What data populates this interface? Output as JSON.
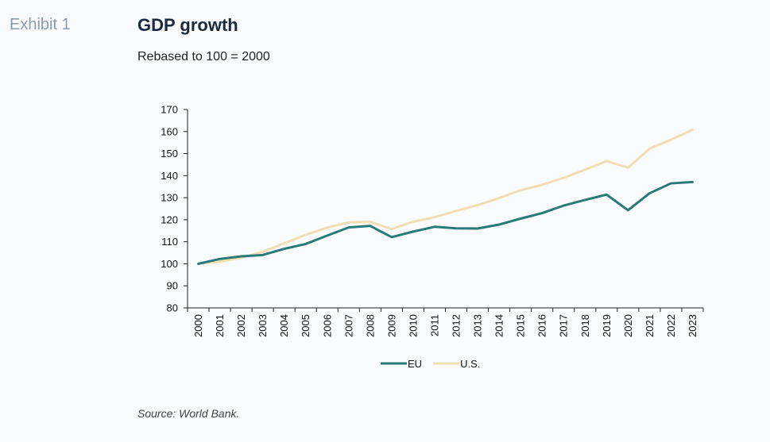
{
  "header": {
    "exhibit": "Exhibit 1",
    "title": "GDP growth",
    "subtitle": "Rebased to 100 = 2000"
  },
  "footer": {
    "source": "Source: World Bank."
  },
  "chart_data": {
    "type": "line",
    "title": "GDP growth",
    "subtitle": "Rebased to 100 = 2000",
    "xlabel": "",
    "ylabel": "",
    "x": [
      "2000",
      "2001",
      "2002",
      "2003",
      "2004",
      "2005",
      "2006",
      "2007",
      "2008",
      "2009",
      "2010",
      "2011",
      "2012",
      "2013",
      "2014",
      "2015",
      "2016",
      "2017",
      "2018",
      "2019",
      "2020",
      "2021",
      "2022",
      "2023"
    ],
    "ylim": [
      80,
      170
    ],
    "yticks": [
      80,
      90,
      100,
      110,
      120,
      130,
      140,
      150,
      160,
      170
    ],
    "grid": false,
    "legend_position": "bottom",
    "series": [
      {
        "name": "EU",
        "color": "#2a7a7a",
        "values": [
          100,
          102.2,
          103.4,
          104.0,
          106.8,
          109.0,
          112.8,
          116.5,
          117.2,
          112.1,
          114.6,
          116.8,
          116.1,
          116.0,
          117.8,
          120.5,
          123.0,
          126.4,
          129.0,
          131.4,
          124.3,
          132.0,
          136.5,
          137.1
        ]
      },
      {
        "name": "U.S.",
        "color": "#efdfb3",
        "values": [
          100,
          101.0,
          102.7,
          105.5,
          109.3,
          113.2,
          116.4,
          118.8,
          119.0,
          115.8,
          119.1,
          121.1,
          124.0,
          126.6,
          129.8,
          133.4,
          135.8,
          139.0,
          142.7,
          146.6,
          143.6,
          152.2,
          156.3,
          160.8
        ]
      }
    ]
  }
}
